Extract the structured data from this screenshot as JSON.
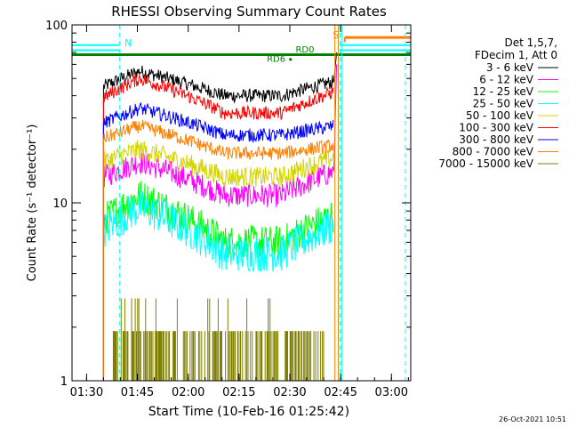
{
  "chart_data": {
    "type": "line",
    "title": "RHESSI Observing Summary Count Rates",
    "xlabel": "Start Time (10-Feb-16 01:25:42)",
    "ylabel": "Count Rate (s⁻¹ detector⁻¹)",
    "yscale": "log",
    "ylim": [
      1,
      100
    ],
    "xlim_minutes": [
      0,
      100
    ],
    "x_ticks": [
      "01:30",
      "01:45",
      "02:00",
      "02:15",
      "02:30",
      "02:45",
      "03:00"
    ],
    "y_ticks": [
      "1",
      "10",
      "100"
    ],
    "legend_header": [
      "Det 1,5,7,",
      "FDecim 1, Att 0"
    ],
    "legend_position": "right",
    "series": [
      {
        "name": "3 - 6 keV",
        "color": "#000000",
        "start_level": 45,
        "peak_level": 55,
        "dip_level": 40,
        "end_level": 48,
        "noise": 0.04
      },
      {
        "name": "6 - 12 keV",
        "color": "#ff00ff",
        "start_level": 14,
        "peak_level": 17,
        "dip_level": 11,
        "end_level": 15,
        "noise": 0.07
      },
      {
        "name": "12 - 25 keV",
        "color": "#00ff00",
        "start_level": 8,
        "peak_level": 11,
        "dip_level": 6,
        "end_level": 8.5,
        "noise": 0.1
      },
      {
        "name": "25 - 50 keV",
        "color": "#00ffff",
        "start_level": 7,
        "peak_level": 9.5,
        "dip_level": 5.2,
        "end_level": 7.5,
        "noise": 0.11
      },
      {
        "name": "50 - 100 keV",
        "color": "#d4d400",
        "start_level": 17,
        "peak_level": 20,
        "dip_level": 14,
        "end_level": 18,
        "noise": 0.06
      },
      {
        "name": "100 - 300 keV",
        "color": "#ff0000",
        "start_level": 39,
        "peak_level": 50,
        "dip_level": 32,
        "end_level": 42,
        "noise": 0.04
      },
      {
        "name": "300 - 800 keV",
        "color": "#0000ff",
        "start_level": 28,
        "peak_level": 34,
        "dip_level": 24,
        "end_level": 27,
        "noise": 0.04
      },
      {
        "name": "800 - 7000 keV",
        "color": "#ff8000",
        "start_level": 23,
        "peak_level": 27,
        "dip_level": 19,
        "end_level": 21,
        "noise": 0.04
      },
      {
        "name": "7000 - 15000 keV",
        "color": "#808000",
        "start_level": 1.9,
        "peak_level": 1.9,
        "dip_level": 1.9,
        "end_level": 1.9,
        "noise": 0.0
      }
    ],
    "markers": {
      "N": "N",
      "S": "S",
      "RD0": "RD0",
      "RD6": "RD6"
    },
    "timestamp": "26-Oct-2021 10:51"
  }
}
